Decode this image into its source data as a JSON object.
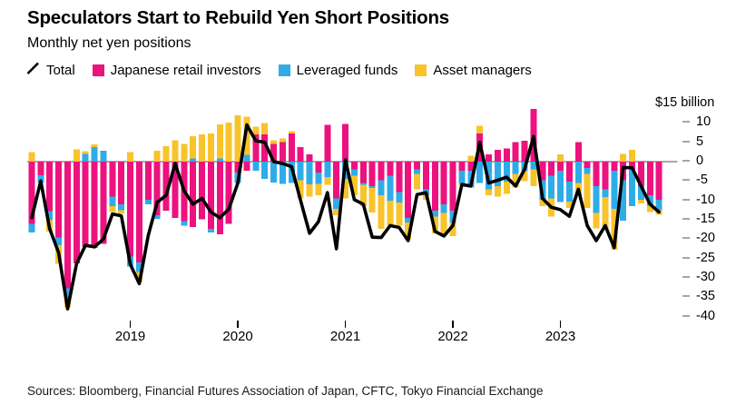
{
  "header": {
    "title": "Speculators Start to Rebuild Yen Short Positions",
    "subtitle": "Monthly net yen positions"
  },
  "legend": {
    "items": [
      {
        "label": "Total",
        "type": "line",
        "color": "#000000"
      },
      {
        "label": "Japanese retail investors",
        "type": "bar",
        "color": "#ec127f"
      },
      {
        "label": "Leveraged funds",
        "type": "bar",
        "color": "#2face8"
      },
      {
        "label": "Asset managers",
        "type": "bar",
        "color": "#f9c32a"
      }
    ]
  },
  "footer": {
    "source": "Sources: Bloomberg, Financial Futures Association of Japan, CFTC, Tokyo Financial Exchange"
  },
  "chart_data": {
    "type": "bar",
    "stacked": true,
    "line_overlay": "Total",
    "title": "Monthly net yen positions",
    "unit": "$ billion",
    "ylim": [
      -40,
      15
    ],
    "grid": "zero-line-only",
    "zero_line_color": "#8c8c8c",
    "x": [
      "2018-02",
      "2018-03",
      "2018-04",
      "2018-05",
      "2018-06",
      "2018-07",
      "2018-08",
      "2018-09",
      "2018-10",
      "2018-11",
      "2018-12",
      "2019-01",
      "2019-02",
      "2019-03",
      "2019-04",
      "2019-05",
      "2019-06",
      "2019-07",
      "2019-08",
      "2019-09",
      "2019-10",
      "2019-11",
      "2019-12",
      "2020-01",
      "2020-02",
      "2020-03",
      "2020-04",
      "2020-05",
      "2020-06",
      "2020-07",
      "2020-08",
      "2020-09",
      "2020-10",
      "2020-11",
      "2020-12",
      "2021-01",
      "2021-02",
      "2021-03",
      "2021-04",
      "2021-05",
      "2021-06",
      "2021-07",
      "2021-08",
      "2021-09",
      "2021-10",
      "2021-11",
      "2021-12",
      "2022-01",
      "2022-02",
      "2022-03",
      "2022-04",
      "2022-05",
      "2022-06",
      "2022-07",
      "2022-08",
      "2022-09",
      "2022-10",
      "2022-11",
      "2022-12",
      "2023-01",
      "2023-02",
      "2023-03",
      "2023-04",
      "2023-05",
      "2023-06",
      "2023-07",
      "2023-08",
      "2023-09",
      "2023-10",
      "2023-11",
      "2023-12"
    ],
    "series": [
      {
        "name": "Japanese retail investors",
        "type": "bar",
        "color": "#ec127f",
        "values": [
          -16.0,
          -3.5,
          -12.8,
          -19.6,
          -32.7,
          -26.3,
          -22.0,
          -22.3,
          -21.2,
          -9.0,
          -11.0,
          -24.5,
          -26.0,
          -9.8,
          -13.8,
          -12.6,
          -14.5,
          -15.3,
          -16.9,
          -14.9,
          -17.3,
          -18.8,
          -16.1,
          -2.8,
          -2.3,
          7.0,
          7.0,
          4.6,
          5.0,
          7.3,
          3.8,
          1.9,
          -2.8,
          9.5,
          -9.5,
          9.7,
          -2.0,
          -5.5,
          -6.3,
          -4.8,
          -3.6,
          -7.9,
          -14.5,
          -2.0,
          -7.1,
          -12.6,
          -11.0,
          -12.6,
          -2.3,
          -2.4,
          7.3,
          1.9,
          3.0,
          3.4,
          5.0,
          5.4,
          13.6,
          -4.8,
          -3.6,
          -2.4,
          -5.2,
          5.0,
          -1.6,
          -6.3,
          -7.1,
          -2.4,
          -4.8,
          -2.0,
          -6.3,
          -8.7,
          -9.8
        ]
      },
      {
        "name": "Leveraged funds",
        "type": "bar",
        "color": "#2face8",
        "values": [
          -2.3,
          -2.0,
          -2.3,
          -2.0,
          -2.7,
          0,
          2.0,
          3.7,
          2.8,
          -2.5,
          -1.5,
          -2.6,
          -2.5,
          -1.2,
          -1.0,
          0,
          0,
          -1.2,
          0.8,
          0,
          -1.0,
          0.8,
          0,
          -2.7,
          1.8,
          -2.4,
          -4.5,
          -5.4,
          -5.7,
          -5.5,
          -4.8,
          -5.9,
          -2.9,
          -4.0,
          -2.7,
          -4.4,
          -1.6,
          -0.5,
          -0.5,
          -3.9,
          -6.5,
          -2.7,
          -1.2,
          -1.2,
          -1.6,
          -1.6,
          -2.3,
          -3.1,
          -3.3,
          -4.3,
          -5.5,
          -7.1,
          -6.3,
          -5.2,
          -3.2,
          -2.4,
          -2.0,
          -5.1,
          -5.9,
          -8.0,
          -5.1,
          -5.5,
          -1.6,
          -7.0,
          -2.0,
          -9.8,
          -10.4,
          -9.5,
          -3.5,
          -2.7,
          -2.7
        ]
      },
      {
        "name": "Asset managers",
        "type": "bar",
        "color": "#f9c32a",
        "values": [
          2.5,
          0,
          -2.9,
          -4.7,
          -2.2,
          3.2,
          0.7,
          0.7,
          0,
          -1.5,
          -1.0,
          2.5,
          -2.5,
          0,
          2.8,
          4.0,
          5.5,
          4.6,
          5.8,
          7.0,
          7.3,
          8.8,
          10.1,
          12.0,
          9.8,
          2.0,
          3.0,
          0.9,
          1.0,
          0.5,
          -4.7,
          -3.1,
          -3.0,
          -2.0,
          -1.6,
          -5.1,
          -5.1,
          -5.5,
          -6.3,
          -8.6,
          -6.3,
          -5.9,
          -4.3,
          -3.9,
          -1.2,
          -4.3,
          -5.5,
          -3.5,
          -0.5,
          1.5,
          2.0,
          -1.6,
          -2.7,
          -3.1,
          -3.5,
          -2.7,
          -4.3,
          -1.6,
          -4.7,
          1.9,
          -1.7,
          -3.1,
          -8.8,
          -3.9,
          -8.6,
          -10.5,
          2.0,
          3.0,
          -1.0,
          -1.6,
          -1.2
        ]
      },
      {
        "name": "Total",
        "type": "line",
        "color": "#000000",
        "values": [
          -14.5,
          -5.0,
          -17.3,
          -23.5,
          -38.0,
          -26.3,
          -21.6,
          -22.0,
          -20.0,
          -13.5,
          -14.0,
          -26.5,
          -31.5,
          -19.0,
          -10.5,
          -8.7,
          -0.5,
          -7.5,
          -11.0,
          -9.5,
          -13.0,
          -14.5,
          -12.2,
          -5.5,
          9.5,
          5.4,
          5.0,
          0,
          -0.5,
          -1.3,
          -10.0,
          -18.5,
          -15.5,
          -8.0,
          -22.5,
          0.5,
          -9.8,
          -11.0,
          -19.5,
          -19.6,
          -16.5,
          -17.0,
          -20.4,
          -8.5,
          -8.0,
          -18.0,
          -19.2,
          -16.5,
          -5.9,
          -6.3,
          5.0,
          -5.5,
          -4.8,
          -4.0,
          -6.3,
          -2.0,
          6.5,
          -9.5,
          -11.8,
          -12.4,
          -14.1,
          -7.1,
          -16.5,
          -20.4,
          -16.5,
          -22.2,
          -1.5,
          -1.6,
          -6.3,
          -11.0,
          -13.0
        ]
      }
    ],
    "y_axis": {
      "unit_label": "$15 billion",
      "ticks": [
        10,
        5,
        0,
        -5,
        -10,
        -15,
        -20,
        -25,
        -30,
        -35,
        -40
      ]
    },
    "x_axis": {
      "years": [
        {
          "label": "2019",
          "month_index": 11
        },
        {
          "label": "2020",
          "month_index": 23
        },
        {
          "label": "2021",
          "month_index": 35
        },
        {
          "label": "2022",
          "month_index": 47
        },
        {
          "label": "2023",
          "month_index": 59
        }
      ]
    }
  }
}
